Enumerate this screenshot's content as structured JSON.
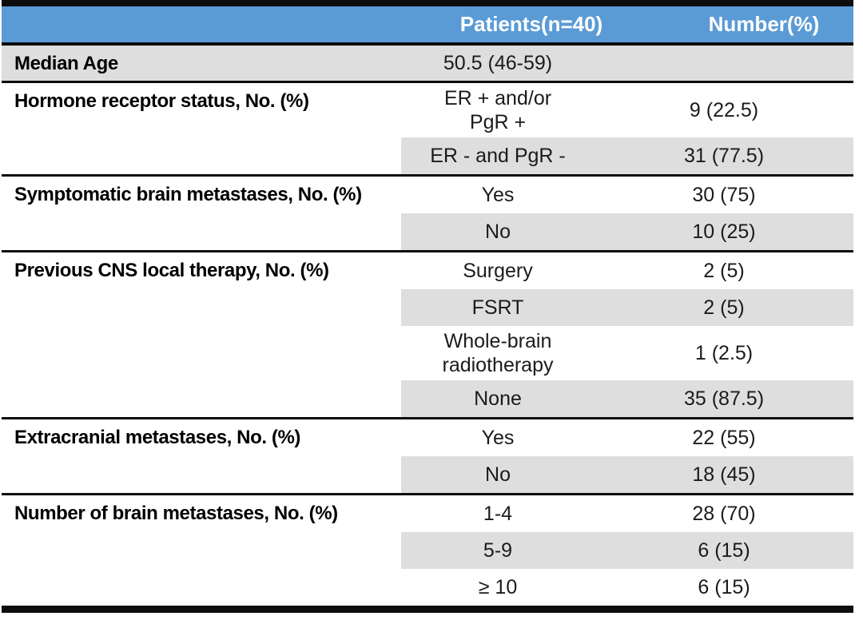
{
  "table": {
    "title_hint": "Patient characteristics table",
    "colors": {
      "header_bg": "#5B9BD5",
      "header_text": "#FFFFFF",
      "shade": "#DEDEDE",
      "rule": "#0D0D0D",
      "body_text": "#1B1B1B"
    },
    "header": {
      "col1": "",
      "col2": "Patients(n=40)",
      "col3": "Number(%)"
    },
    "sections": [
      {
        "id": "median-age",
        "label": "Median Age",
        "full_shade": true,
        "rows": [
          {
            "value": "50.5 (46-59)",
            "number": "",
            "shaded": true
          }
        ]
      },
      {
        "id": "hormone-receptor-status",
        "label": "Hormone receptor status, No. (%)",
        "rows": [
          {
            "value": "ER + and/or\nPgR +",
            "number": "9 (22.5)",
            "shaded": false
          },
          {
            "value": "ER - and PgR -",
            "number": "31 (77.5)",
            "shaded": true
          }
        ]
      },
      {
        "id": "symptomatic-brain-metastases",
        "label": "Symptomatic brain metastases, No. (%)",
        "rows": [
          {
            "value": "Yes",
            "number": "30 (75)",
            "shaded": false
          },
          {
            "value": "No",
            "number": "10 (25)",
            "shaded": true
          }
        ]
      },
      {
        "id": "previous-cns-local-therapy",
        "label": "Previous CNS local therapy, No. (%)",
        "rows": [
          {
            "value": "Surgery",
            "number": "2 (5)",
            "shaded": false
          },
          {
            "value": "FSRT",
            "number": "2 (5)",
            "shaded": true
          },
          {
            "value": "Whole-brain\nradiotherapy",
            "number": "1 (2.5)",
            "shaded": false
          },
          {
            "value": "None",
            "number": "35 (87.5)",
            "shaded": true
          }
        ]
      },
      {
        "id": "extracranial-metastases",
        "label": "Extracranial metastases, No. (%)",
        "rows": [
          {
            "value": "Yes",
            "number": "22 (55)",
            "shaded": false
          },
          {
            "value": "No",
            "number": "18 (45)",
            "shaded": true
          }
        ]
      },
      {
        "id": "number-of-brain-metastases",
        "label": "Number of brain metastases, No. (%)",
        "rows": [
          {
            "value": "1-4",
            "number": "28 (70)",
            "shaded": false
          },
          {
            "value": "5-9",
            "number": "6 (15)",
            "shaded": true
          },
          {
            "value": "≥ 10",
            "number": "6 (15)",
            "shaded": false
          }
        ]
      }
    ]
  }
}
